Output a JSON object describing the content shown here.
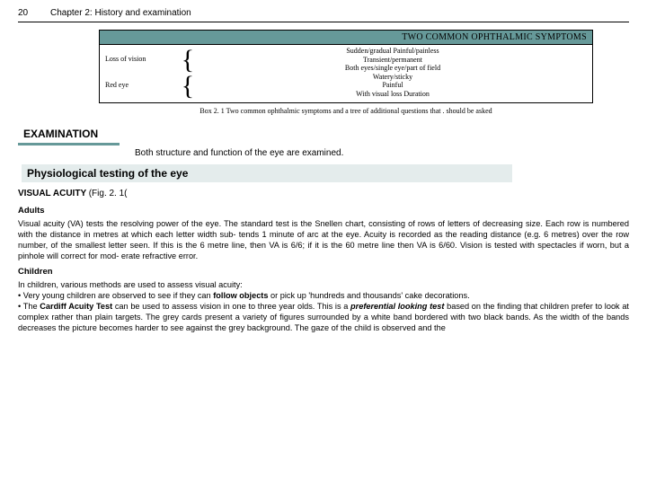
{
  "header": {
    "page_number": "20",
    "chapter_title": "Chapter 2: History and examination"
  },
  "symptom_box": {
    "title": "TWO COMMON OPHTHALMIC SYMPTOMS",
    "left_items": [
      "Loss of vision",
      "Red eye"
    ],
    "right_lines": [
      "Sudden/gradual Painful/painless",
      "Transient/permanent",
      "Both eyes/single eye/part of field",
      "Watery/sticky",
      "Painful",
      "With visual loss Duration"
    ],
    "caption": "Box 2. 1 Two common ophthalmic symptoms and a tree of additional questions that . should be asked",
    "title_bg": "#669999"
  },
  "examination": {
    "heading": "EXAMINATION",
    "intro": "Both structure and function of the eye are examined."
  },
  "physio": {
    "heading": "Physiological testing of the eye",
    "va_heading": "VISUAL ACUITY",
    "va_fig": "(Fig. 2. 1(",
    "adults_h": "Adults",
    "adults_p": "Visual acuity (VA) tests the resolving power of the eye. The standard test is  the Snellen chart, consisting of rows of letters of decreasing size. Each row  is numbered with the distance in metres at which each letter width sub-  tends 1 minute of arc at the eye. Acuity is recorded as the reading distance  (e.g. 6 metres) over the row number, of the smallest letter seen. If this is the  6 metre line, then VA is 6/6; if it is the 60 metre line then VA is 6/60.  Vision is tested with spectacles if worn, but a pinhole will correct for mod-  erate refractive error.",
    "children_h": "Children",
    "children_p1": "In children, various methods are used to assess visual acuity:",
    "children_b1a": "• Very young children are observed to see if they can ",
    "children_b1b": "follow objects",
    "children_b1c": " or  pick up 'hundreds and thousands' cake decorations.",
    "children_b2a": "• The ",
    "children_b2b": "Cardiff Acuity Test",
    "children_b2c": " can be used to assess vision in one to three year  olds. This is a ",
    "children_b2d": "preferential looking test",
    "children_b2e": " based on the finding that children  prefer to look at complex rather than plain targets. The grey cards present  a variety of figures surrounded by a white band bordered with two black  bands. As the width of the bands decreases the picture becomes harder to  see against the grey background. The gaze of the child is observed and the"
  }
}
